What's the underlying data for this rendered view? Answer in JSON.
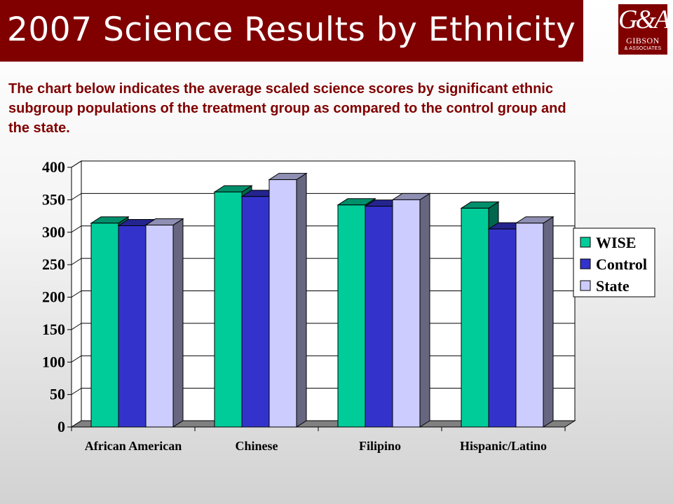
{
  "header": {
    "title": "2007 Science Results by Ethnicity",
    "logo_monogram": "G&A",
    "logo_name": "GIBSON",
    "logo_sub": "& ASSOCIATES"
  },
  "intro": "The chart below indicates the average scaled science scores by significant ethnic subgroup populations of the treatment group as compared to the control group and the state.",
  "colors": {
    "header_bg": "#800000",
    "intro_text": "#800000",
    "wise": "#00cc99",
    "control": "#3333cc",
    "state": "#ccccff"
  },
  "chart_data": {
    "type": "bar",
    "categories": [
      "African American",
      "Chinese",
      "Filipino",
      "Hispanic/Latino"
    ],
    "series": [
      {
        "name": "WISE",
        "values": [
          314,
          362,
          342,
          337
        ]
      },
      {
        "name": "Control",
        "values": [
          310,
          355,
          340,
          305
        ]
      },
      {
        "name": "State",
        "values": [
          311,
          381,
          350,
          314
        ]
      }
    ],
    "ylim": [
      0,
      400
    ],
    "yticks": [
      0,
      50,
      100,
      150,
      200,
      250,
      300,
      350,
      400
    ],
    "grid": true,
    "legend": "right",
    "title": "",
    "xlabel": "",
    "ylabel": ""
  }
}
